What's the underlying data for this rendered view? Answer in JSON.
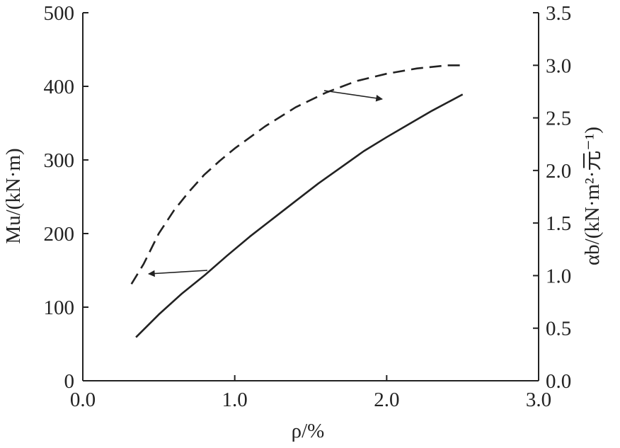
{
  "chart_data": {
    "type": "line",
    "title": "",
    "xlabel": "ρ/%",
    "ylabel_left": "Mu/(kN·m)",
    "ylabel_right": "αb/(kN·m²·元⁻¹)",
    "xlim": [
      0,
      3
    ],
    "ylim_left": [
      0,
      500
    ],
    "ylim_right": [
      0,
      3.5
    ],
    "x_ticks": [
      "0.0",
      "1.0",
      "2.0",
      "3.0"
    ],
    "y_left_ticks": [
      "0",
      "100",
      "200",
      "300",
      "400",
      "500"
    ],
    "y_right_ticks": [
      "0.0",
      "0.5",
      "1.0",
      "1.5",
      "2.0",
      "2.5",
      "3.0",
      "3.5"
    ],
    "grid": false,
    "series": [
      {
        "axis": "left",
        "style": "solid",
        "x": [
          0.35,
          0.5,
          0.65,
          0.8,
          0.95,
          1.1,
          1.25,
          1.4,
          1.55,
          1.7,
          1.85,
          2.0,
          2.15,
          2.3,
          2.5
        ],
        "y": [
          59,
          90,
          118,
          143,
          170,
          196,
          220,
          244,
          268,
          290,
          312,
          331,
          349,
          367,
          389
        ]
      },
      {
        "axis": "right",
        "style": "dashed",
        "x": [
          0.32,
          0.4,
          0.5,
          0.6,
          0.7,
          0.8,
          0.9,
          1.0,
          1.2,
          1.4,
          1.6,
          1.8,
          2.0,
          2.2,
          2.4,
          2.5
        ],
        "y": [
          0.92,
          1.11,
          1.4,
          1.62,
          1.8,
          1.96,
          2.09,
          2.21,
          2.42,
          2.6,
          2.74,
          2.85,
          2.92,
          2.97,
          3.0,
          3.0
        ]
      }
    ]
  }
}
